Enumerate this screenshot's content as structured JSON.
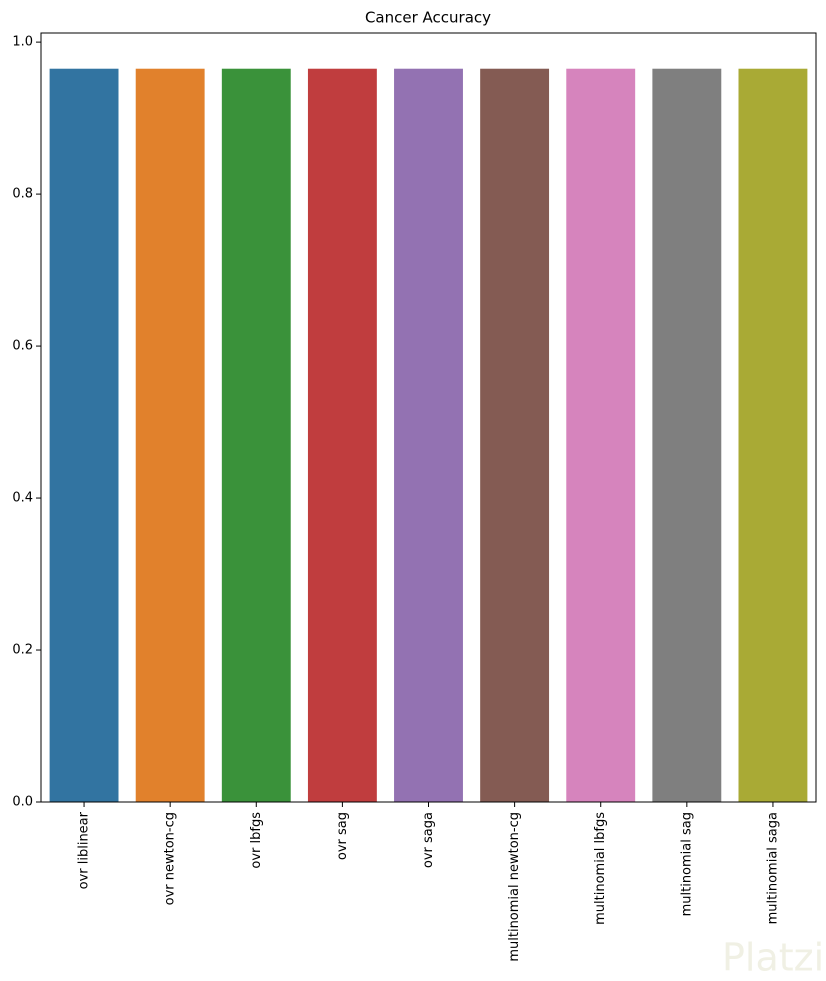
{
  "chart_data": {
    "type": "bar",
    "title": "Cancer Accuracy",
    "categories": [
      "ovr liblinear",
      "ovr newton-cg",
      "ovr lbfgs",
      "ovr sag",
      "ovr saga",
      "multinomial newton-cg",
      "multinomial lbfgs",
      "multinomial sag",
      "multinomial saga"
    ],
    "values": [
      0.965,
      0.965,
      0.965,
      0.965,
      0.965,
      0.965,
      0.965,
      0.965,
      0.965
    ],
    "colors": [
      "#3274a1",
      "#e1812c",
      "#3a923a",
      "#c03d3e",
      "#9372b2",
      "#845b53",
      "#d684bd",
      "#7f7f7f",
      "#a9aa35"
    ],
    "ylim": [
      0,
      1.012
    ],
    "yticks": [
      {
        "value": 0,
        "label": "0.0"
      },
      {
        "value": 0.2,
        "label": "0.2"
      },
      {
        "value": 0.4,
        "label": "0.4"
      },
      {
        "value": 0.6,
        "label": "0.6"
      },
      {
        "value": 0.8,
        "label": "0.8"
      },
      {
        "value": 1.0,
        "label": "1.0"
      }
    ],
    "grid": false
  },
  "watermark": "Platzi"
}
